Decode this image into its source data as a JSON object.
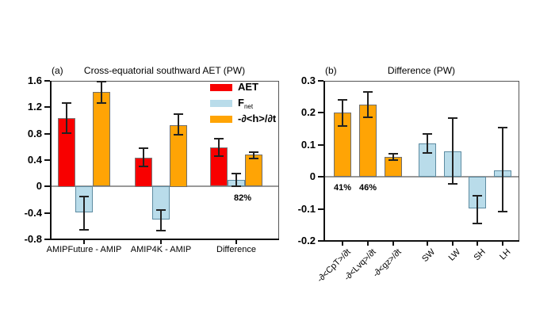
{
  "colors": {
    "background": "#ffffff",
    "red": "#f80000",
    "orange": "#ffa405",
    "lightblue": "#b9dcea",
    "red_edge": "#7a7a7a",
    "orange_edge": "#6e6e6e",
    "lightblue_edge": "#5d8ba1",
    "error_bar": "#222222",
    "zero_line": "#999999",
    "axis": "#111111",
    "frame": "#555555",
    "text": "#000000"
  },
  "chart_data": [
    {
      "type": "bar",
      "panel_label": "(a)",
      "title": "Cross-equatorial southward AET (PW)",
      "ylim": [
        -0.8,
        1.6
      ],
      "yticks": [
        {
          "v": 1.6,
          "label": "1.6"
        },
        {
          "v": 1.2,
          "label": "1.2"
        },
        {
          "v": 0.8,
          "label": "0.8"
        },
        {
          "v": 0.4,
          "label": "0.4"
        },
        {
          "v": 0.0,
          "label": "0"
        },
        {
          "v": -0.4,
          "label": "-0.4"
        },
        {
          "v": -0.8,
          "label": "-0.8"
        }
      ],
      "grid": false,
      "categories": [
        "AMIPFuture - AMIP",
        "AMIP4K - AMIP",
        "Difference"
      ],
      "series": [
        {
          "name": "AET",
          "color": "red",
          "values": [
            1.04,
            0.44,
            0.59
          ],
          "errors": [
            [
              0.81,
              1.27
            ],
            [
              0.3,
              0.58
            ],
            [
              0.46,
              0.73
            ]
          ]
        },
        {
          "name": "Fnet",
          "color": "lightblue",
          "values": [
            -0.4,
            -0.5,
            0.1
          ],
          "errors": [
            [
              -0.66,
              -0.15
            ],
            [
              -0.67,
              -0.35
            ],
            [
              0.005,
              0.2
            ]
          ]
        },
        {
          "name": "-d<h>/dt",
          "color": "orange",
          "values": [
            1.43,
            0.93,
            0.48
          ],
          "errors": [
            [
              1.26,
              1.59
            ],
            [
              0.78,
              1.1
            ],
            [
              0.43,
              0.52
            ]
          ]
        }
      ],
      "annotations": [
        {
          "text": "82%",
          "category": 2,
          "series": 1
        }
      ],
      "legend": {
        "position": "top-right",
        "items": [
          {
            "label": "AET",
            "color": "red"
          },
          {
            "label": "F",
            "subscript": "net",
            "color": "lightblue"
          },
          {
            "label": "-∂<h>/∂t",
            "color": "orange"
          }
        ]
      }
    },
    {
      "type": "bar",
      "panel_label": "(b)",
      "title": "Difference (PW)",
      "ylim": [
        -0.2,
        0.3
      ],
      "yticks": [
        {
          "v": 0.3,
          "label": "0.3"
        },
        {
          "v": 0.2,
          "label": "0.2"
        },
        {
          "v": 0.1,
          "label": "0.1"
        },
        {
          "v": 0.0,
          "label": "0"
        },
        {
          "v": -0.1,
          "label": "-0.1"
        },
        {
          "v": -0.2,
          "label": "-0.2"
        }
      ],
      "grid": false,
      "rotated_xticks": true,
      "bars": [
        {
          "label": "-∂<CpT>/∂t",
          "value": 0.2,
          "error": [
            0.16,
            0.24
          ],
          "color": "orange",
          "pct": "41%"
        },
        {
          "label": "-∂<Lvq>/∂t",
          "value": 0.225,
          "error": [
            0.185,
            0.265
          ],
          "color": "orange",
          "pct": "46%"
        },
        {
          "label": "-∂<gz>/∂t",
          "value": 0.062,
          "error": [
            0.052,
            0.072
          ],
          "color": "orange"
        },
        {
          "label": "SW",
          "value": 0.104,
          "error": [
            0.074,
            0.134
          ],
          "color": "lightblue"
        },
        {
          "label": "LW",
          "value": 0.08,
          "error": [
            -0.022,
            0.183
          ],
          "color": "lightblue"
        },
        {
          "label": "SH",
          "value": -0.1,
          "error": [
            -0.145,
            -0.06
          ],
          "color": "lightblue"
        },
        {
          "label": "LH",
          "value": 0.021,
          "error": [
            -0.109,
            0.153
          ],
          "color": "lightblue"
        }
      ]
    }
  ]
}
